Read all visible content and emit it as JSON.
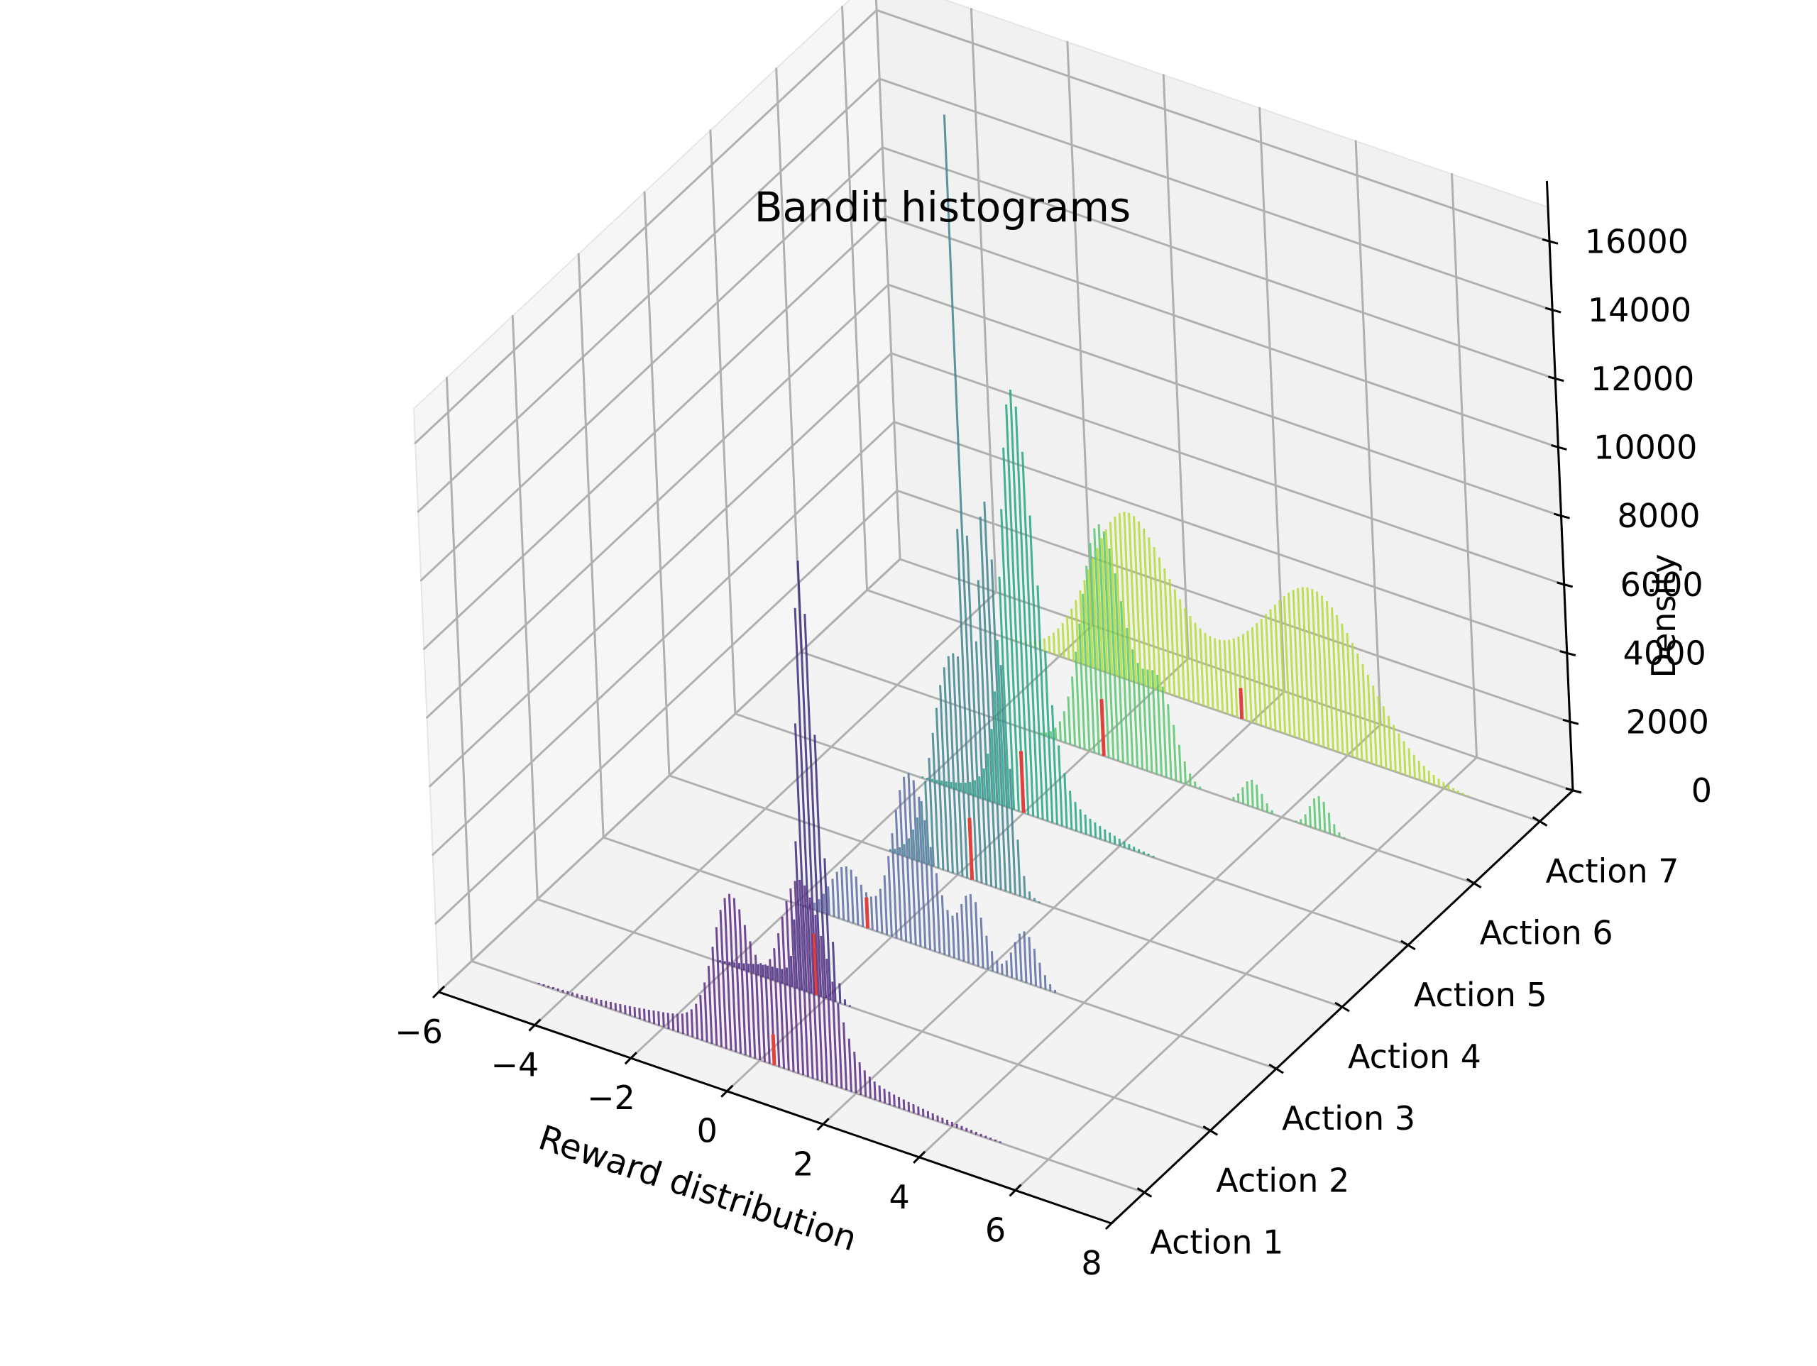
{
  "chart_data": {
    "type": "bar",
    "title": "Bandit histograms",
    "xlabel": "Reward distribution",
    "zlabel": "Density",
    "x_ticks": [
      "−6",
      "−4",
      "−2",
      "0",
      "2",
      "4",
      "6",
      "8"
    ],
    "x_tick_values": [
      -6,
      -4,
      -2,
      0,
      2,
      4,
      6,
      8
    ],
    "y_ticks": [
      "Action 1",
      "Action 2",
      "Action 3",
      "Action 4",
      "Action 5",
      "Action 6",
      "Action 7"
    ],
    "z_ticks": [
      "0",
      "2000",
      "4000",
      "6000",
      "8000",
      "10000",
      "12000",
      "14000",
      "16000"
    ],
    "z_tick_values": [
      0,
      2000,
      4000,
      6000,
      8000,
      10000,
      12000,
      14000,
      16000
    ],
    "xlim": [
      -6,
      8
    ],
    "zlim": [
      0,
      17000
    ],
    "grid": true,
    "colors": {
      "pane_left": "#f6f6f6",
      "pane_back": "#f1f1f1",
      "pane_floor": "#f3f3f3",
      "grid": "#b0b0b0",
      "mean_marker": "#e0413a"
    },
    "series": [
      {
        "name": "Action 1",
        "color": "#5a2a82",
        "mean": 0.3,
        "components": [
          {
            "mu": -0.5,
            "sigma": 0.38,
            "peak": 3800
          },
          {
            "mu": 1.0,
            "sigma": 0.5,
            "peak": 5000
          },
          {
            "mu": 0.2,
            "sigma": 2.0,
            "peak": 800
          }
        ]
      },
      {
        "name": "Action 2",
        "color": "#3d2c7a",
        "mean": -0.2,
        "components": [
          {
            "mu": -0.2,
            "sigma": 0.2,
            "peak": 12500
          },
          {
            "mu": -1.0,
            "sigma": 0.6,
            "peak": 400
          }
        ]
      },
      {
        "name": "Action 3",
        "color": "#5a6fa3",
        "mean": -0.5,
        "components": [
          {
            "mu": -0.9,
            "sigma": 0.35,
            "peak": 1600
          },
          {
            "mu": 0.5,
            "sigma": 0.4,
            "peak": 5000
          },
          {
            "mu": 1.7,
            "sigma": 0.25,
            "peak": 2000
          },
          {
            "mu": 2.8,
            "sigma": 0.25,
            "peak": 1500
          }
        ]
      },
      {
        "name": "Action 4",
        "color": "#40848e",
        "mean": 0.3,
        "components": [
          {
            "mu": 0.1,
            "sigma": 0.5,
            "peak": 6500
          },
          {
            "mu": 0.9,
            "sigma": 0.2,
            "peak": 9500
          },
          {
            "mu": 0.4,
            "sigma": 0.06,
            "peak": 16500
          }
        ]
      },
      {
        "name": "Action 5",
        "color": "#22a483",
        "mean": 0.0,
        "components": [
          {
            "mu": 0.1,
            "sigma": 0.35,
            "peak": 11500
          },
          {
            "mu": 0.3,
            "sigma": 1.0,
            "peak": 900
          }
        ]
      },
      {
        "name": "Action 6",
        "color": "#58c66e",
        "mean": 0.3,
        "components": [
          {
            "mu": 0.4,
            "sigma": 0.45,
            "peak": 6800
          },
          {
            "mu": 1.5,
            "sigma": 0.3,
            "peak": 2600
          },
          {
            "mu": 3.4,
            "sigma": 0.2,
            "peak": 800
          },
          {
            "mu": 4.8,
            "sigma": 0.2,
            "peak": 1000
          }
        ]
      },
      {
        "name": "Action 7",
        "color": "#b5dc38",
        "mean": 1.8,
        "components": [
          {
            "mu": -0.5,
            "sigma": 0.8,
            "peak": 4500
          },
          {
            "mu": 3.5,
            "sigma": 1.0,
            "peak": 4100
          },
          {
            "mu": 1.5,
            "sigma": 1.3,
            "peak": 1400
          }
        ]
      }
    ]
  }
}
